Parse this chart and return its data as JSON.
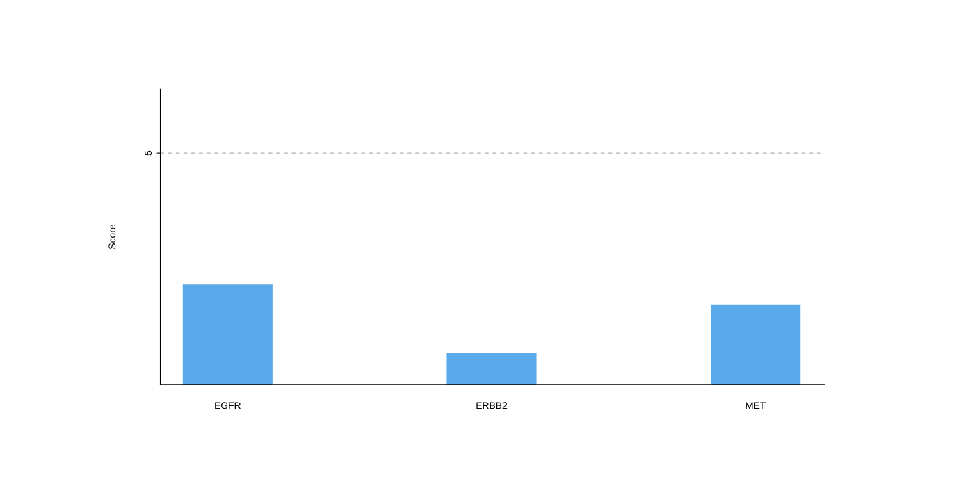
{
  "chart_data": {
    "type": "bar",
    "ylabel": "Score",
    "categories": [
      "EGFR",
      "ERBB2",
      "MET"
    ],
    "values": [
      2.16,
      0.69,
      1.73
    ],
    "color": "#5aa9ea",
    "ylim": [
      0,
      6.38
    ],
    "yticks": [
      5
    ],
    "ref_lines": [
      {
        "axis": "y",
        "value": 5,
        "line_style": "dashed",
        "color": "#b0b0b0"
      }
    ],
    "grid": false,
    "legend": false
  }
}
